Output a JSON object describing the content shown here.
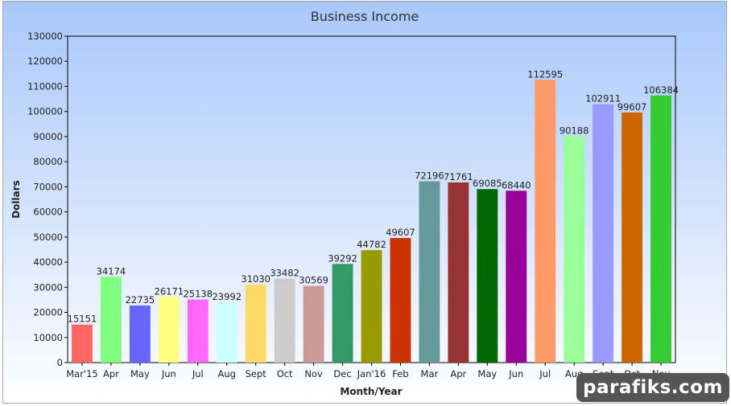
{
  "chart_data": {
    "type": "bar",
    "title": "Business Income",
    "xlabel": "Month/Year",
    "ylabel": "Dollars",
    "ylim": [
      0,
      130000
    ],
    "ytick_step": 10000,
    "grid": false,
    "categories": [
      "Mar'15",
      "Apr",
      "May",
      "Jun",
      "Jul",
      "Aug",
      "Sept",
      "Oct",
      "Nov",
      "Dec",
      "Jan'16",
      "Feb",
      "Mar",
      "Apr",
      "May",
      "Jun",
      "Jul",
      "Aug",
      "Sept",
      "Oct",
      "Nov"
    ],
    "values": [
      15151,
      34174,
      22735,
      26171,
      25138,
      23992,
      31030,
      33482,
      30569,
      39292,
      44782,
      49607,
      72196,
      71761,
      69085,
      68440,
      112595,
      90188,
      102911,
      99607,
      106384
    ],
    "colors": [
      "#ff6666",
      "#80ff80",
      "#6666ff",
      "#ffff80",
      "#ff66ff",
      "#ccffff",
      "#ffd966",
      "#cccccc",
      "#cc9999",
      "#339966",
      "#999900",
      "#cc3300",
      "#669999",
      "#993333",
      "#006600",
      "#990099",
      "#ff9966",
      "#99ff99",
      "#9999ff",
      "#cc6600",
      "#33cc33"
    ]
  },
  "watermark": {
    "text": "parafiks.com"
  }
}
